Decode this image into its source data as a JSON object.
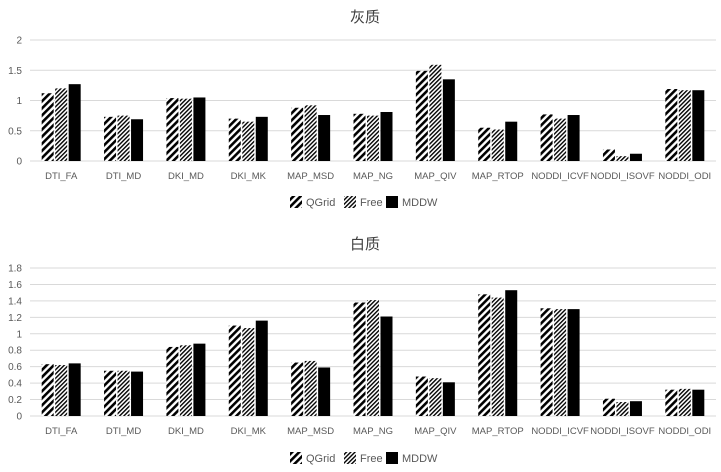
{
  "chart_data": [
    {
      "type": "bar",
      "title": "灰质",
      "xlabel": "",
      "ylabel": "",
      "ylim": [
        0,
        2
      ],
      "yticks": [
        "0",
        "0.5",
        "1",
        "1.5",
        "2"
      ],
      "grid": true,
      "legend_position": "bottom",
      "categories": [
        "DTI_FA",
        "DTI_MD",
        "DKI_MD",
        "DKI_MK",
        "MAP_MSD",
        "MAP_NG",
        "MAP_QIV",
        "MAP_RTOP",
        "NODDI_ICVF",
        "NODDI_ISOVF",
        "NODDI_ODI"
      ],
      "series": [
        {
          "name": "QGrid",
          "values": [
            1.12,
            0.73,
            1.04,
            0.7,
            0.88,
            0.78,
            1.49,
            0.55,
            0.77,
            0.19,
            1.19
          ]
        },
        {
          "name": "Free",
          "values": [
            1.2,
            0.75,
            1.03,
            0.65,
            0.92,
            0.75,
            1.59,
            0.52,
            0.7,
            0.08,
            1.17
          ]
        },
        {
          "name": "MDDW",
          "values": [
            1.27,
            0.69,
            1.05,
            0.73,
            0.76,
            0.81,
            1.35,
            0.65,
            0.76,
            0.12,
            1.17
          ]
        }
      ]
    },
    {
      "type": "bar",
      "title": "白质",
      "xlabel": "",
      "ylabel": "",
      "ylim": [
        0,
        1.8
      ],
      "yticks": [
        "0",
        "0.2",
        "0.4",
        "0.6",
        "0.8",
        "1",
        "1.2",
        "1.4",
        "1.6",
        "1.8"
      ],
      "grid": true,
      "legend_position": "bottom",
      "categories": [
        "DTI_FA",
        "DTI_MD",
        "DKI_MD",
        "DKI_MK",
        "MAP_MSD",
        "MAP_NG",
        "MAP_QIV",
        "MAP_RTOP",
        "NODDI_ICVF",
        "NODDI_ISOVF",
        "NODDI_ODI"
      ],
      "series": [
        {
          "name": "QGrid",
          "values": [
            0.63,
            0.55,
            0.84,
            1.1,
            0.65,
            1.38,
            0.48,
            1.48,
            1.31,
            0.21,
            0.32
          ]
        },
        {
          "name": "Free",
          "values": [
            0.62,
            0.55,
            0.86,
            1.07,
            0.67,
            1.41,
            0.46,
            1.44,
            1.3,
            0.17,
            0.33
          ]
        },
        {
          "name": "MDDW",
          "values": [
            0.64,
            0.54,
            0.88,
            1.16,
            0.59,
            1.21,
            0.41,
            1.53,
            1.3,
            0.18,
            0.32
          ]
        }
      ]
    }
  ],
  "colors": {
    "bar": "#000000",
    "grid": "#d9d9d9",
    "axis_text": "#595959",
    "title_text": "#404040"
  }
}
